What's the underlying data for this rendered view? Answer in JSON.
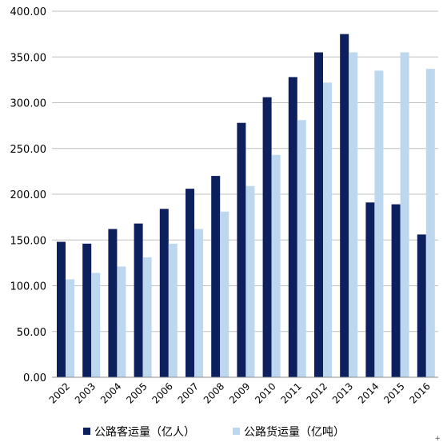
{
  "chart_data": {
    "type": "bar",
    "categories": [
      "2002",
      "2003",
      "2004",
      "2005",
      "2006",
      "2007",
      "2008",
      "2009",
      "2010",
      "2011",
      "2012",
      "2013",
      "2014",
      "2015",
      "2016"
    ],
    "series": [
      {
        "name": "公路客运量（亿人）",
        "color": "#0d1f5c",
        "values": [
          148,
          146,
          162,
          168,
          184,
          206,
          220,
          278,
          306,
          328,
          355,
          375,
          191,
          189,
          156
        ]
      },
      {
        "name": "公路货运量（亿吨）",
        "color": "#bdd7ee",
        "values": [
          107,
          114,
          121,
          131,
          146,
          162,
          181,
          209,
          243,
          281,
          322,
          355,
          335,
          355,
          337
        ]
      }
    ],
    "yticks": [
      "0.00",
      "50.00",
      "100.00",
      "150.00",
      "200.00",
      "250.00",
      "300.00",
      "350.00",
      "400.00"
    ],
    "ylim": [
      0,
      400
    ],
    "grid": true,
    "legend_position": "bottom",
    "title": "",
    "xlabel": "",
    "ylabel": ""
  },
  "footnote_mark": "+"
}
